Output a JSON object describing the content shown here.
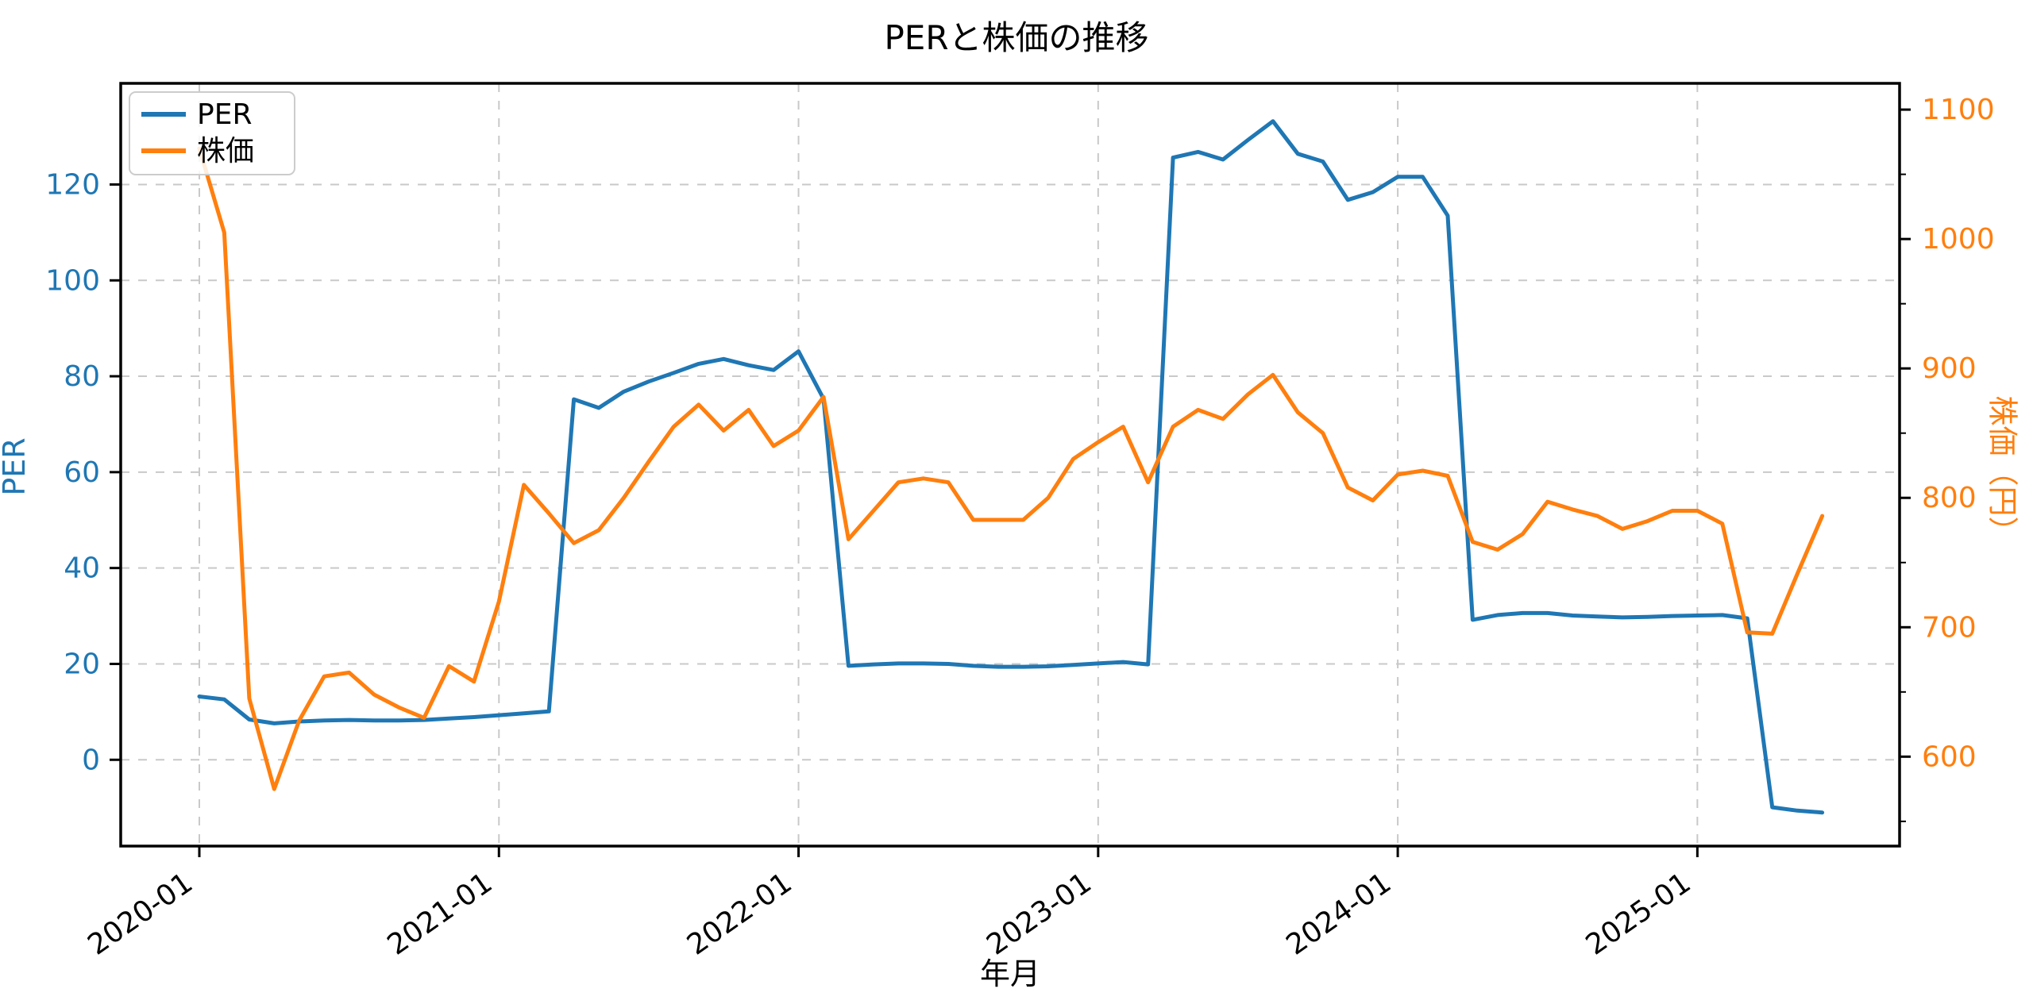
{
  "title": "PERと株価の推移",
  "xlabel": "年月",
  "ylabel_left": "PER",
  "ylabel_right": "株価（円）",
  "legend": [
    "PER",
    "株価"
  ],
  "colors": {
    "per": "#1f77b4",
    "kabuka": "#ff7f0e",
    "grid": "#c9c9c9",
    "spine": "#000000",
    "legend_border": "#cccccc"
  },
  "chart_data": {
    "type": "line",
    "title": "PERと株価の推移",
    "xlabel": "年月",
    "ylabel_left": "PER",
    "ylabel_right": "株価（円）",
    "grid": true,
    "legend_position": "upper left",
    "x": [
      "2020-01",
      "2020-02",
      "2020-03",
      "2020-04",
      "2020-05",
      "2020-06",
      "2020-07",
      "2020-08",
      "2020-09",
      "2020-10",
      "2020-11",
      "2020-12",
      "2021-01",
      "2021-02",
      "2021-03",
      "2021-04",
      "2021-05",
      "2021-06",
      "2021-07",
      "2021-08",
      "2021-09",
      "2021-10",
      "2021-11",
      "2021-12",
      "2022-01",
      "2022-02",
      "2022-03",
      "2022-04",
      "2022-05",
      "2022-06",
      "2022-07",
      "2022-08",
      "2022-09",
      "2022-10",
      "2022-11",
      "2022-12",
      "2023-01",
      "2023-02",
      "2023-03",
      "2023-04",
      "2023-05",
      "2023-06",
      "2023-07",
      "2023-08",
      "2023-09",
      "2023-10",
      "2023-11",
      "2023-12",
      "2024-01",
      "2024-02",
      "2024-03",
      "2024-04",
      "2024-05",
      "2024-06",
      "2024-07",
      "2024-08",
      "2024-09",
      "2024-10",
      "2024-11",
      "2024-12",
      "2025-01",
      "2025-02",
      "2025-03",
      "2025-04",
      "2025-05",
      "2025-06"
    ],
    "series": [
      {
        "name": "PER",
        "axis": "left",
        "color": "#1f77b4",
        "values": [
          13.2,
          12.6,
          8.4,
          7.6,
          8.0,
          8.2,
          8.3,
          8.2,
          8.2,
          8.3,
          8.6,
          8.9,
          9.3,
          9.7,
          10.1,
          75.2,
          73.4,
          76.8,
          78.9,
          80.7,
          82.6,
          83.6,
          82.3,
          81.3,
          85.2,
          75.3,
          19.6,
          19.9,
          20.1,
          20.1,
          20.0,
          19.6,
          19.4,
          19.4,
          19.5,
          19.8,
          20.1,
          20.4,
          19.9,
          125.6,
          126.8,
          125.2,
          129.3,
          133.2,
          126.4,
          124.8,
          116.8,
          118.4,
          121.6,
          121.6,
          113.5,
          29.2,
          30.2,
          30.6,
          30.6,
          30.1,
          29.9,
          29.7,
          29.8,
          30.0,
          30.1,
          30.2,
          29.5,
          -9.9,
          -10.6,
          -11.0
        ]
      },
      {
        "name": "株価",
        "axis": "right",
        "color": "#ff7f0e",
        "values": [
          1070,
          1005,
          645,
          575,
          628,
          662,
          665,
          648,
          638,
          630,
          670,
          658,
          720,
          810,
          788,
          765,
          775,
          800,
          828,
          855,
          872,
          852,
          868,
          840,
          852,
          878,
          768,
          790,
          812,
          815,
          812,
          783,
          783,
          783,
          800,
          830,
          843,
          855,
          812,
          855,
          868,
          861,
          880,
          895,
          866,
          850,
          808,
          798,
          818,
          821,
          817,
          766,
          760,
          772,
          797,
          791,
          786,
          776,
          782,
          790,
          790,
          780,
          696,
          695,
          741,
          786
        ]
      }
    ],
    "x_tick_labels": [
      "2020-01",
      "2021-01",
      "2022-01",
      "2023-01",
      "2024-01",
      "2025-01"
    ],
    "x_tick_month_indices": [
      0,
      12,
      24,
      36,
      48,
      60
    ],
    "left_ticks": [
      0,
      20,
      40,
      60,
      80,
      100,
      120
    ],
    "right_ticks": [
      600,
      700,
      800,
      900,
      1000,
      1100
    ],
    "right_minor_ticks": [
      550,
      650,
      750,
      850,
      950,
      1050
    ],
    "left_ylim": [
      -18.0,
      141.1
    ],
    "right_ylim": [
      530.9,
      1120.3
    ]
  }
}
